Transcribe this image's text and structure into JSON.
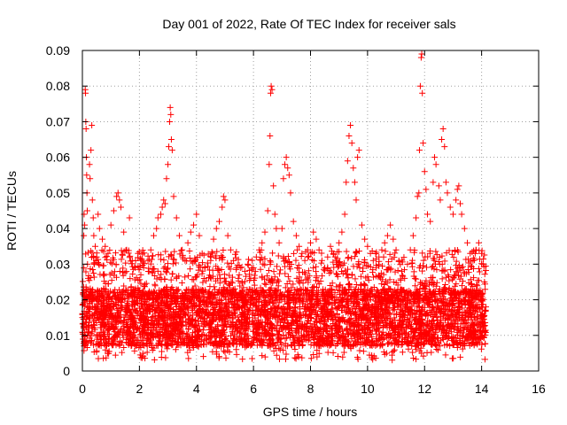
{
  "chart_data": {
    "type": "scatter",
    "title": "Day 001 of 2022, Rate Of TEC Index for receiver sals",
    "xlabel": "GPS time / hours",
    "ylabel": "ROTI / TECUs",
    "xlim": [
      0,
      16
    ],
    "ylim": [
      0,
      0.09
    ],
    "xticks": [
      0,
      2,
      4,
      6,
      8,
      10,
      12,
      14,
      16
    ],
    "yticks": [
      0,
      0.01,
      0.02,
      0.03,
      0.04,
      0.05,
      0.06,
      0.07,
      0.08,
      0.09
    ],
    "xtick_labels": [
      "0",
      "2",
      "4",
      "6",
      "8",
      "10",
      "12",
      "14",
      "16"
    ],
    "ytick_labels": [
      "0",
      "0.01",
      "0.02",
      "0.03",
      "0.04",
      "0.05",
      "0.06",
      "0.07",
      "0.08",
      "0.09"
    ],
    "grid": true,
    "legend": "none",
    "marker": "+",
    "color": "#ff0000",
    "series": [
      {
        "points": [
          [
            0.0,
            0.015
          ],
          [
            0.03,
            0.022
          ],
          [
            0.05,
            0.038
          ],
          [
            0.06,
            0.044
          ],
          [
            0.08,
            0.041
          ],
          [
            0.1,
            0.079
          ],
          [
            0.11,
            0.078
          ],
          [
            0.12,
            0.07
          ],
          [
            0.13,
            0.068
          ],
          [
            0.14,
            0.06
          ],
          [
            0.15,
            0.055
          ],
          [
            0.16,
            0.05
          ],
          [
            0.17,
            0.045
          ],
          [
            0.18,
            0.03
          ],
          [
            0.2,
            0.026
          ],
          [
            0.22,
            0.021
          ],
          [
            0.25,
            0.058
          ],
          [
            0.27,
            0.054
          ],
          [
            0.3,
            0.062
          ],
          [
            0.33,
            0.069
          ],
          [
            0.35,
            0.048
          ],
          [
            0.38,
            0.043
          ],
          [
            0.4,
            0.038
          ],
          [
            0.45,
            0.035
          ],
          [
            0.5,
            0.032
          ],
          [
            0.55,
            0.044
          ],
          [
            0.6,
            0.04
          ],
          [
            0.7,
            0.037
          ],
          [
            0.8,
            0.035
          ],
          [
            0.9,
            0.033
          ],
          [
            1.0,
            0.041
          ],
          [
            1.1,
            0.045
          ],
          [
            1.2,
            0.049
          ],
          [
            1.25,
            0.05
          ],
          [
            1.3,
            0.048
          ],
          [
            1.35,
            0.046
          ],
          [
            1.45,
            0.039
          ],
          [
            1.55,
            0.034
          ],
          [
            1.65,
            0.043
          ],
          [
            1.75,
            0.031
          ],
          [
            1.85,
            0.029
          ],
          [
            1.95,
            0.033
          ],
          [
            2.05,
            0.027
          ],
          [
            2.15,
            0.029
          ],
          [
            2.3,
            0.031
          ],
          [
            2.4,
            0.034
          ],
          [
            2.5,
            0.038
          ],
          [
            2.6,
            0.04
          ],
          [
            2.65,
            0.043
          ],
          [
            2.75,
            0.044
          ],
          [
            2.8,
            0.046
          ],
          [
            2.85,
            0.048
          ],
          [
            2.9,
            0.047
          ],
          [
            2.95,
            0.054
          ],
          [
            3.0,
            0.058
          ],
          [
            3.03,
            0.063
          ],
          [
            3.06,
            0.07
          ],
          [
            3.08,
            0.074
          ],
          [
            3.1,
            0.072
          ],
          [
            3.12,
            0.065
          ],
          [
            3.15,
            0.062
          ],
          [
            3.2,
            0.049
          ],
          [
            3.3,
            0.043
          ],
          [
            3.4,
            0.038
          ],
          [
            3.5,
            0.034
          ],
          [
            3.6,
            0.031
          ],
          [
            3.7,
            0.036
          ],
          [
            3.8,
            0.039
          ],
          [
            3.9,
            0.041
          ],
          [
            4.0,
            0.044
          ],
          [
            4.1,
            0.038
          ],
          [
            4.2,
            0.033
          ],
          [
            4.3,
            0.029
          ],
          [
            4.5,
            0.031
          ],
          [
            4.6,
            0.037
          ],
          [
            4.7,
            0.04
          ],
          [
            4.8,
            0.042
          ],
          [
            4.9,
            0.046
          ],
          [
            4.95,
            0.049
          ],
          [
            5.0,
            0.048
          ],
          [
            5.1,
            0.038
          ],
          [
            5.2,
            0.034
          ],
          [
            5.3,
            0.031
          ],
          [
            5.4,
            0.029
          ],
          [
            5.5,
            0.027
          ],
          [
            5.6,
            0.025
          ],
          [
            5.7,
            0.028
          ],
          [
            5.8,
            0.03
          ],
          [
            5.9,
            0.026
          ],
          [
            6.0,
            0.029
          ],
          [
            6.1,
            0.032
          ],
          [
            6.2,
            0.034
          ],
          [
            6.3,
            0.036
          ],
          [
            6.4,
            0.039
          ],
          [
            6.5,
            0.045
          ],
          [
            6.55,
            0.058
          ],
          [
            6.58,
            0.066
          ],
          [
            6.6,
            0.078
          ],
          [
            6.62,
            0.08
          ],
          [
            6.65,
            0.079
          ],
          [
            6.7,
            0.052
          ],
          [
            6.75,
            0.044
          ],
          [
            6.8,
            0.04
          ],
          [
            6.9,
            0.036
          ],
          [
            7.0,
            0.04
          ],
          [
            7.05,
            0.054
          ],
          [
            7.1,
            0.058
          ],
          [
            7.15,
            0.06
          ],
          [
            7.2,
            0.057
          ],
          [
            7.25,
            0.055
          ],
          [
            7.3,
            0.05
          ],
          [
            7.4,
            0.042
          ],
          [
            7.5,
            0.038
          ],
          [
            7.6,
            0.035
          ],
          [
            7.7,
            0.033
          ],
          [
            7.8,
            0.031
          ],
          [
            7.9,
            0.034
          ],
          [
            8.0,
            0.036
          ],
          [
            8.1,
            0.039
          ],
          [
            8.2,
            0.037
          ],
          [
            8.3,
            0.034
          ],
          [
            8.4,
            0.031
          ],
          [
            8.5,
            0.029
          ],
          [
            8.6,
            0.032
          ],
          [
            8.7,
            0.035
          ],
          [
            8.8,
            0.033
          ],
          [
            8.9,
            0.031
          ],
          [
            9.0,
            0.036
          ],
          [
            9.1,
            0.039
          ],
          [
            9.2,
            0.044
          ],
          [
            9.25,
            0.053
          ],
          [
            9.3,
            0.059
          ],
          [
            9.35,
            0.066
          ],
          [
            9.4,
            0.069
          ],
          [
            9.45,
            0.064
          ],
          [
            9.5,
            0.057
          ],
          [
            9.55,
            0.053
          ],
          [
            9.6,
            0.048
          ],
          [
            9.65,
            0.06
          ],
          [
            9.7,
            0.062
          ],
          [
            9.8,
            0.041
          ],
          [
            9.9,
            0.037
          ],
          [
            10.0,
            0.035
          ],
          [
            10.1,
            0.033
          ],
          [
            10.2,
            0.031
          ],
          [
            10.3,
            0.029
          ],
          [
            10.4,
            0.032
          ],
          [
            10.5,
            0.034
          ],
          [
            10.6,
            0.036
          ],
          [
            10.7,
            0.038
          ],
          [
            10.8,
            0.041
          ],
          [
            10.9,
            0.037
          ],
          [
            11.0,
            0.034
          ],
          [
            11.1,
            0.031
          ],
          [
            11.2,
            0.028
          ],
          [
            11.3,
            0.026
          ],
          [
            11.4,
            0.03
          ],
          [
            11.5,
            0.034
          ],
          [
            11.6,
            0.038
          ],
          [
            11.7,
            0.043
          ],
          [
            11.75,
            0.049
          ],
          [
            11.8,
            0.05
          ],
          [
            11.82,
            0.062
          ],
          [
            11.85,
            0.08
          ],
          [
            11.88,
            0.088
          ],
          [
            11.9,
            0.089
          ],
          [
            11.92,
            0.078
          ],
          [
            11.95,
            0.064
          ],
          [
            12.0,
            0.056
          ],
          [
            12.05,
            0.051
          ],
          [
            12.1,
            0.044
          ],
          [
            12.2,
            0.042
          ],
          [
            12.3,
            0.053
          ],
          [
            12.35,
            0.06
          ],
          [
            12.4,
            0.058
          ],
          [
            12.5,
            0.052
          ],
          [
            12.55,
            0.048
          ],
          [
            12.6,
            0.065
          ],
          [
            12.65,
            0.068
          ],
          [
            12.7,
            0.063
          ],
          [
            12.75,
            0.053
          ],
          [
            12.8,
            0.05
          ],
          [
            12.9,
            0.046
          ],
          [
            13.0,
            0.044
          ],
          [
            13.1,
            0.048
          ],
          [
            13.15,
            0.051
          ],
          [
            13.2,
            0.052
          ],
          [
            13.25,
            0.047
          ],
          [
            13.3,
            0.044
          ],
          [
            13.4,
            0.04
          ],
          [
            13.5,
            0.036
          ],
          [
            13.6,
            0.033
          ],
          [
            13.7,
            0.031
          ],
          [
            13.8,
            0.034
          ],
          [
            13.9,
            0.036
          ],
          [
            14.0,
            0.033
          ],
          [
            14.05,
            0.03
          ],
          [
            14.1,
            0.025
          ],
          [
            14.15,
            0.018
          ]
        ],
        "baseline_band": {
          "x_range": [
            0.0,
            14.15
          ],
          "y_typical_range": [
            0.005,
            0.03
          ],
          "y_floor_min": 0.003,
          "note_hidden": true
        }
      }
    ]
  }
}
